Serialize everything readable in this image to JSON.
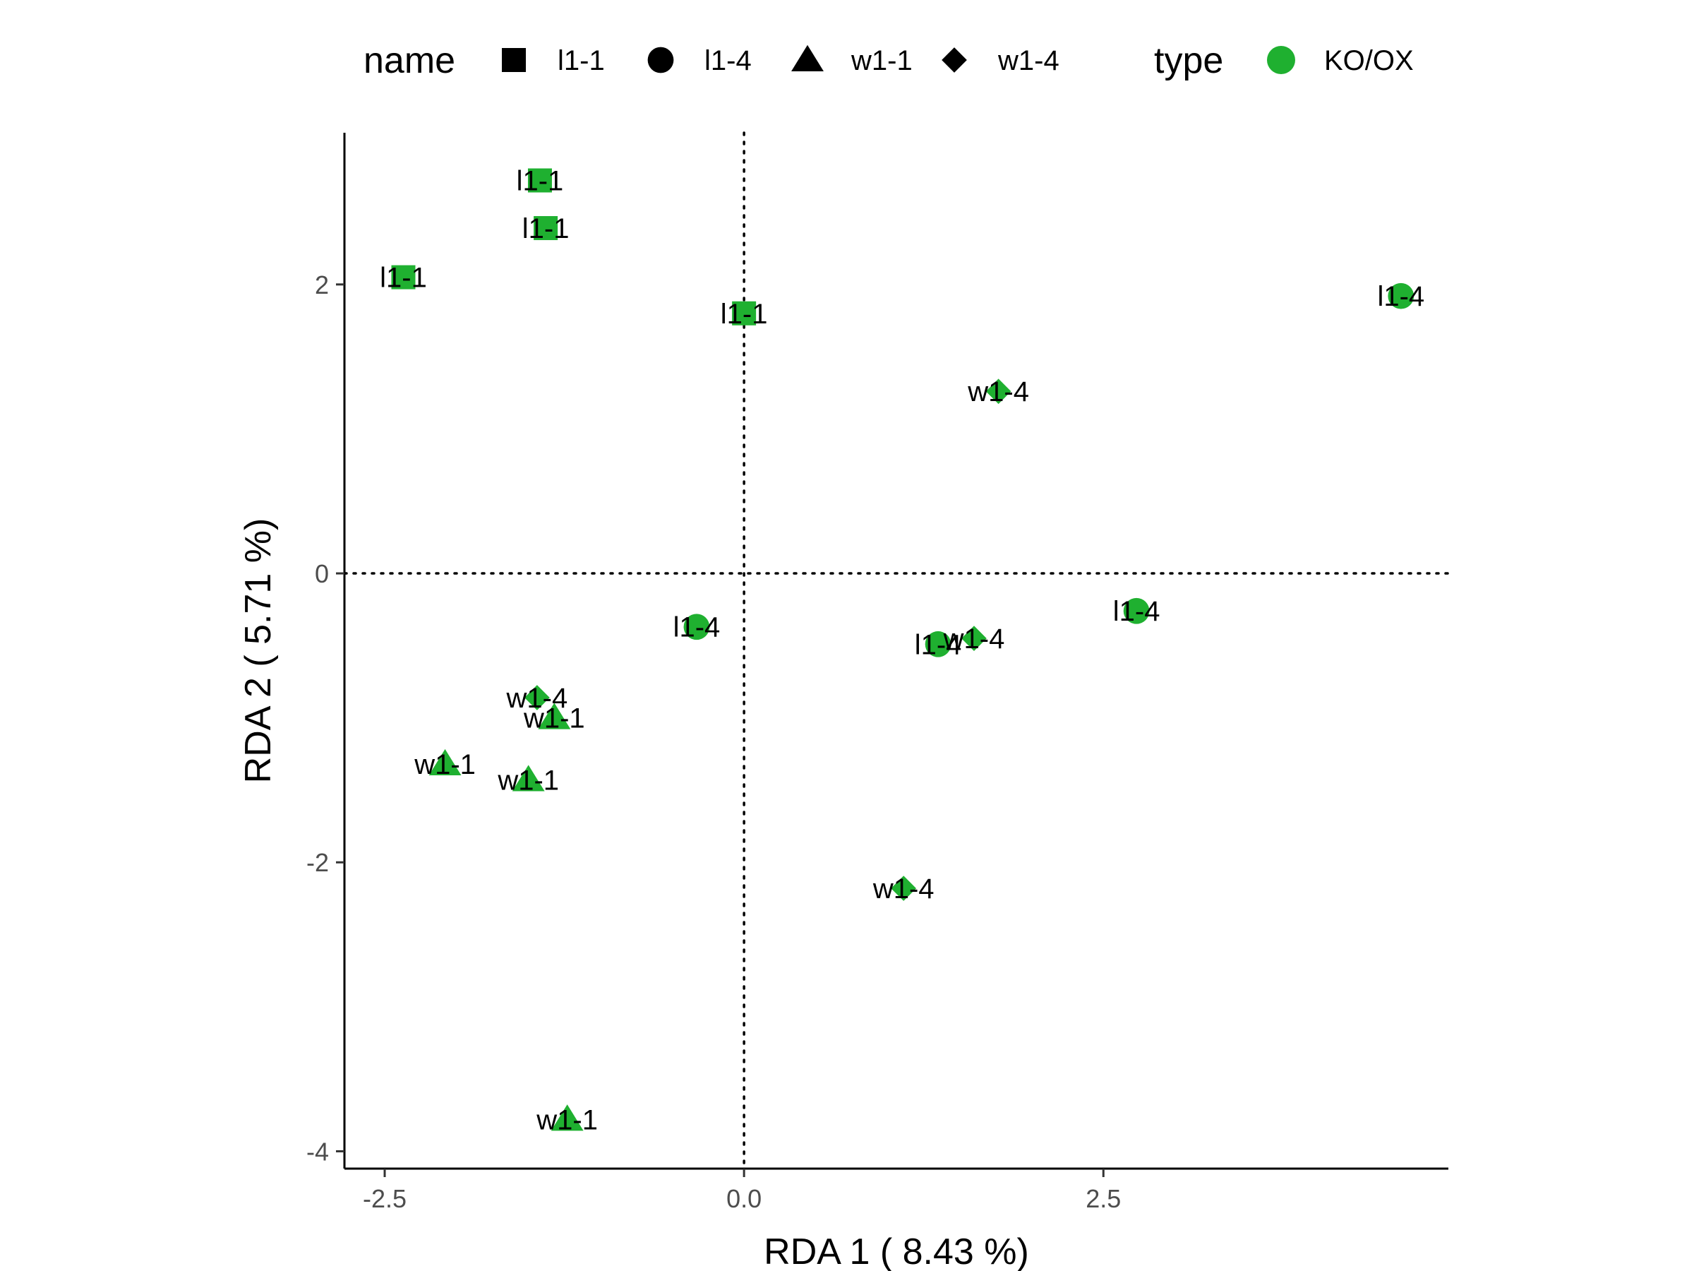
{
  "chart_data": {
    "type": "scatter",
    "title": "",
    "xlabel": "RDA 1 ( 8.43 %)",
    "ylabel": "RDA 2 ( 5.71 %)",
    "xlim": [
      -2.78,
      4.9
    ],
    "ylim": [
      -4.12,
      3.05
    ],
    "x_ticks": [
      -2.5,
      0.0,
      2.5
    ],
    "x_tick_labels": [
      "-2.5",
      "0.0",
      "2.5"
    ],
    "y_ticks": [
      -4,
      -2,
      0,
      2
    ],
    "y_tick_labels": [
      "-4",
      "-2",
      "0",
      "2"
    ],
    "grid": false,
    "reference_lines": {
      "x": 0,
      "y": 0,
      "style": "dotted"
    },
    "legend": {
      "position": "top",
      "shape_title": "name",
      "shape_entries": [
        {
          "label": "l1-1",
          "shape": "square"
        },
        {
          "label": "l1-4",
          "shape": "circle"
        },
        {
          "label": "w1-1",
          "shape": "triangle"
        },
        {
          "label": "w1-4",
          "shape": "diamond"
        }
      ],
      "color_title": "type",
      "color_entries": [
        {
          "label": "KO/OX",
          "color": "#1fb030"
        }
      ]
    },
    "series": [
      {
        "name": "l1-1",
        "shape": "square",
        "points": [
          {
            "x": -1.42,
            "y": 2.72,
            "label": "l1-1"
          },
          {
            "x": -1.38,
            "y": 2.39,
            "label": "l1-1"
          },
          {
            "x": -2.37,
            "y": 2.05,
            "label": "l1-1"
          },
          {
            "x": 0.0,
            "y": 1.8,
            "label": "l1-1"
          }
        ]
      },
      {
        "name": "l1-4",
        "shape": "circle",
        "points": [
          {
            "x": 4.57,
            "y": 1.92,
            "label": "l1-4"
          },
          {
            "x": -0.33,
            "y": -0.37,
            "label": "l1-4"
          },
          {
            "x": 2.73,
            "y": -0.26,
            "label": "l1-4"
          },
          {
            "x": 1.35,
            "y": -0.49,
            "label": "l1-4"
          }
        ]
      },
      {
        "name": "w1-1",
        "shape": "triangle",
        "points": [
          {
            "x": -1.32,
            "y": -1.0,
            "label": "w1-1"
          },
          {
            "x": -2.08,
            "y": -1.32,
            "label": "w1-1"
          },
          {
            "x": -1.5,
            "y": -1.43,
            "label": "w1-1"
          },
          {
            "x": -1.23,
            "y": -3.78,
            "label": "w1-1"
          }
        ]
      },
      {
        "name": "w1-4",
        "shape": "diamond",
        "points": [
          {
            "x": 1.77,
            "y": 1.26,
            "label": "w1-4"
          },
          {
            "x": 1.6,
            "y": -0.45,
            "label": "w1-4"
          },
          {
            "x": -1.44,
            "y": -0.86,
            "label": "w1-4"
          },
          {
            "x": 1.11,
            "y": -2.18,
            "label": "w1-4"
          }
        ]
      }
    ],
    "point_color": "#1fb030"
  }
}
